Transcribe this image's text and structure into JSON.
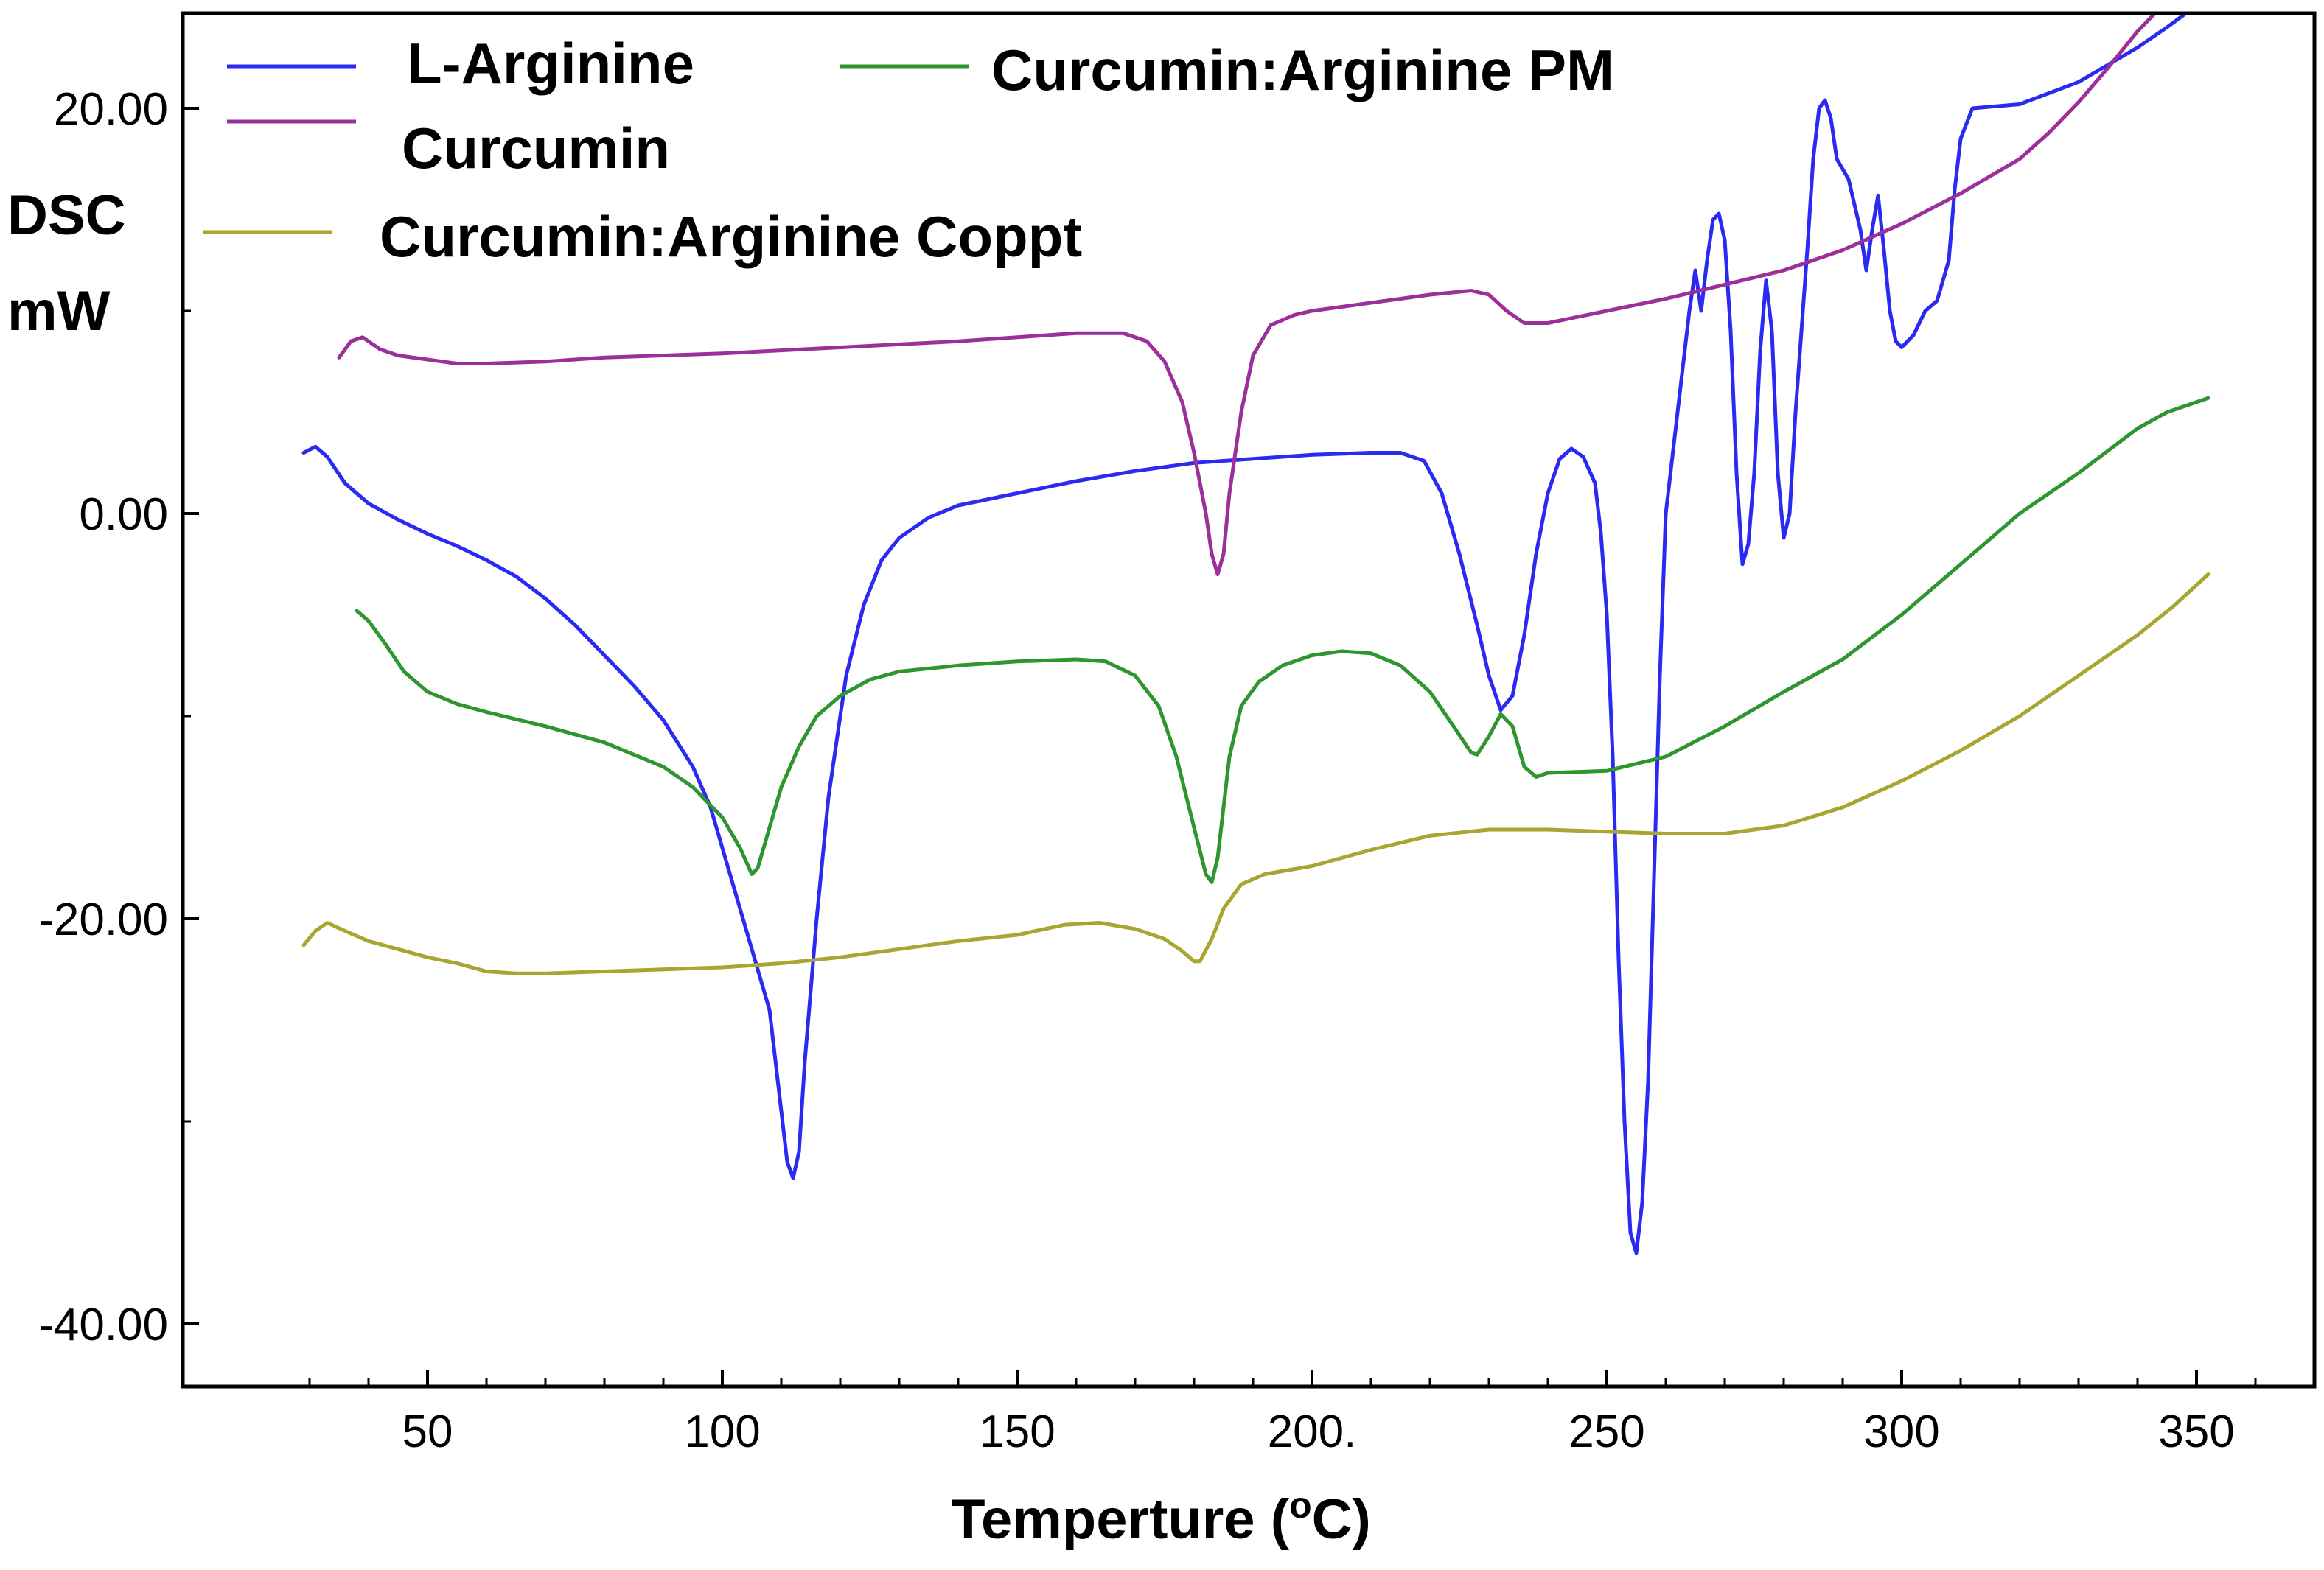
{
  "chart_data": {
    "type": "line",
    "title": "",
    "xlabel": "Temperture (",
    "xlabel_superscript": "o",
    "xlabel_suffix": "C)",
    "ylabel_line1": "DSC",
    "ylabel_line2": "mW",
    "xlim": [
      8,
      368
    ],
    "ylim": [
      -43,
      25
    ],
    "x_ticks": [
      {
        "value": 50,
        "label": "50"
      },
      {
        "value": 100,
        "label": "100"
      },
      {
        "value": 150,
        "label": "150"
      },
      {
        "value": 200,
        "label": "200."
      },
      {
        "value": 250,
        "label": "250"
      },
      {
        "value": 300,
        "label": "300"
      },
      {
        "value": 350,
        "label": "350"
      }
    ],
    "y_ticks": [
      {
        "value": 20,
        "label": "20.00"
      },
      {
        "value": 0,
        "label": "0.00"
      },
      {
        "value": -20,
        "label": "-20.00"
      },
      {
        "value": -40,
        "label": "-40.00"
      }
    ],
    "grid": false,
    "legend_position": "top-left",
    "series": [
      {
        "name": "L-Arginine",
        "color": "#2a2af2",
        "points": [
          [
            29,
            3.0
          ],
          [
            31,
            3.3
          ],
          [
            33,
            2.8
          ],
          [
            36,
            1.5
          ],
          [
            40,
            0.5
          ],
          [
            45,
            -0.3
          ],
          [
            50,
            -1.0
          ],
          [
            55,
            -1.6
          ],
          [
            60,
            -2.3
          ],
          [
            65,
            -3.1
          ],
          [
            70,
            -4.2
          ],
          [
            75,
            -5.5
          ],
          [
            80,
            -7.0
          ],
          [
            85,
            -8.5
          ],
          [
            90,
            -10.2
          ],
          [
            95,
            -12.5
          ],
          [
            98,
            -14.5
          ],
          [
            100,
            -16.5
          ],
          [
            103,
            -19.5
          ],
          [
            106,
            -22.5
          ],
          [
            108,
            -24.5
          ],
          [
            110,
            -29.5
          ],
          [
            111,
            -32.0
          ],
          [
            112,
            -32.8
          ],
          [
            113,
            -31.5
          ],
          [
            114,
            -27.0
          ],
          [
            116,
            -20.0
          ],
          [
            118,
            -14.0
          ],
          [
            121,
            -8.0
          ],
          [
            124,
            -4.5
          ],
          [
            127,
            -2.3
          ],
          [
            130,
            -1.2
          ],
          [
            135,
            -0.2
          ],
          [
            140,
            0.4
          ],
          [
            150,
            1.0
          ],
          [
            160,
            1.6
          ],
          [
            170,
            2.1
          ],
          [
            180,
            2.5
          ],
          [
            190,
            2.7
          ],
          [
            200,
            2.9
          ],
          [
            210,
            3.0
          ],
          [
            215,
            3.0
          ],
          [
            219,
            2.6
          ],
          [
            222,
            1.0
          ],
          [
            225,
            -2.0
          ],
          [
            228,
            -5.5
          ],
          [
            230,
            -8.0
          ],
          [
            232,
            -9.7
          ],
          [
            234,
            -9.0
          ],
          [
            236,
            -6.0
          ],
          [
            238,
            -2.0
          ],
          [
            240,
            1.0
          ],
          [
            242,
            2.7
          ],
          [
            244,
            3.2
          ],
          [
            246,
            2.8
          ],
          [
            248,
            1.5
          ],
          [
            249,
            -1.0
          ],
          [
            250,
            -5.0
          ],
          [
            251,
            -12.0
          ],
          [
            252,
            -22.0
          ],
          [
            253,
            -30.0
          ],
          [
            254,
            -35.5
          ],
          [
            255,
            -36.5
          ],
          [
            256,
            -34.0
          ],
          [
            257,
            -28.0
          ],
          [
            258,
            -18.0
          ],
          [
            259,
            -8.0
          ],
          [
            260,
            0.0
          ],
          [
            262,
            5.0
          ],
          [
            264,
            10.0
          ],
          [
            265,
            12.0
          ],
          [
            266,
            10.0
          ],
          [
            267,
            12.5
          ],
          [
            268,
            14.5
          ],
          [
            269,
            14.8
          ],
          [
            270,
            13.5
          ],
          [
            271,
            9.0
          ],
          [
            272,
            2.0
          ],
          [
            273,
            -2.5
          ],
          [
            274,
            -1.5
          ],
          [
            275,
            2.0
          ],
          [
            276,
            8.0
          ],
          [
            277,
            11.5
          ],
          [
            278,
            9.0
          ],
          [
            279,
            2.0
          ],
          [
            280,
            -1.2
          ],
          [
            281,
            0.0
          ],
          [
            282,
            5.0
          ],
          [
            284,
            13.0
          ],
          [
            285,
            17.5
          ],
          [
            286,
            20.0
          ],
          [
            287,
            20.4
          ],
          [
            288,
            19.5
          ],
          [
            289,
            17.5
          ],
          [
            291,
            16.5
          ],
          [
            293,
            14.0
          ],
          [
            294,
            12.0
          ],
          [
            295,
            14.0
          ],
          [
            296,
            15.7
          ],
          [
            297,
            13.0
          ],
          [
            298,
            10.0
          ],
          [
            299,
            8.5
          ],
          [
            300,
            8.2
          ],
          [
            302,
            8.8
          ],
          [
            304,
            10.0
          ],
          [
            306,
            10.5
          ],
          [
            308,
            12.5
          ],
          [
            309,
            16.0
          ],
          [
            310,
            18.5
          ],
          [
            312,
            20.0
          ],
          [
            320,
            20.2
          ],
          [
            330,
            21.3
          ],
          [
            340,
            23.0
          ],
          [
            345,
            24.0
          ],
          [
            352,
            25.5
          ]
        ]
      },
      {
        "name": "Curcumin",
        "color": "#9b309b",
        "points": [
          [
            35,
            7.7
          ],
          [
            37,
            8.5
          ],
          [
            39,
            8.7
          ],
          [
            42,
            8.1
          ],
          [
            45,
            7.8
          ],
          [
            50,
            7.6
          ],
          [
            55,
            7.4
          ],
          [
            60,
            7.4
          ],
          [
            70,
            7.5
          ],
          [
            80,
            7.7
          ],
          [
            90,
            7.8
          ],
          [
            100,
            7.9
          ],
          [
            120,
            8.2
          ],
          [
            140,
            8.5
          ],
          [
            150,
            8.7
          ],
          [
            160,
            8.9
          ],
          [
            168,
            8.9
          ],
          [
            172,
            8.5
          ],
          [
            175,
            7.5
          ],
          [
            178,
            5.5
          ],
          [
            180,
            3.0
          ],
          [
            182,
            0.0
          ],
          [
            183,
            -2.0
          ],
          [
            184,
            -3.0
          ],
          [
            185,
            -2.0
          ],
          [
            186,
            1.0
          ],
          [
            188,
            5.0
          ],
          [
            190,
            7.8
          ],
          [
            193,
            9.3
          ],
          [
            197,
            9.8
          ],
          [
            200,
            10.0
          ],
          [
            210,
            10.4
          ],
          [
            220,
            10.8
          ],
          [
            227,
            11.0
          ],
          [
            230,
            10.8
          ],
          [
            233,
            10.0
          ],
          [
            236,
            9.4
          ],
          [
            240,
            9.4
          ],
          [
            250,
            10.0
          ],
          [
            260,
            10.6
          ],
          [
            270,
            11.3
          ],
          [
            280,
            12.0
          ],
          [
            290,
            13.0
          ],
          [
            300,
            14.3
          ],
          [
            310,
            15.8
          ],
          [
            320,
            17.5
          ],
          [
            325,
            18.8
          ],
          [
            330,
            20.3
          ],
          [
            335,
            22.0
          ],
          [
            340,
            23.8
          ],
          [
            344,
            25.0
          ]
        ]
      },
      {
        "name": "Curcumin:Arginine PM",
        "color": "#2f952f",
        "points": [
          [
            38,
            -4.8
          ],
          [
            40,
            -5.3
          ],
          [
            43,
            -6.5
          ],
          [
            46,
            -7.8
          ],
          [
            50,
            -8.8
          ],
          [
            55,
            -9.4
          ],
          [
            60,
            -9.8
          ],
          [
            70,
            -10.5
          ],
          [
            80,
            -11.3
          ],
          [
            90,
            -12.5
          ],
          [
            95,
            -13.5
          ],
          [
            100,
            -15.0
          ],
          [
            103,
            -16.5
          ],
          [
            105,
            -17.8
          ],
          [
            106,
            -17.5
          ],
          [
            108,
            -15.5
          ],
          [
            110,
            -13.5
          ],
          [
            113,
            -11.5
          ],
          [
            116,
            -10.0
          ],
          [
            120,
            -9.0
          ],
          [
            125,
            -8.2
          ],
          [
            130,
            -7.8
          ],
          [
            140,
            -7.5
          ],
          [
            150,
            -7.3
          ],
          [
            160,
            -7.2
          ],
          [
            165,
            -7.3
          ],
          [
            170,
            -8.0
          ],
          [
            174,
            -9.5
          ],
          [
            177,
            -12.0
          ],
          [
            180,
            -15.5
          ],
          [
            182,
            -17.8
          ],
          [
            183,
            -18.2
          ],
          [
            184,
            -17.0
          ],
          [
            186,
            -12.0
          ],
          [
            188,
            -9.5
          ],
          [
            191,
            -8.3
          ],
          [
            195,
            -7.5
          ],
          [
            200,
            -7.0
          ],
          [
            205,
            -6.8
          ],
          [
            210,
            -6.9
          ],
          [
            215,
            -7.5
          ],
          [
            220,
            -8.8
          ],
          [
            224,
            -10.5
          ],
          [
            227,
            -11.8
          ],
          [
            228,
            -11.9
          ],
          [
            230,
            -11.0
          ],
          [
            232,
            -9.9
          ],
          [
            234,
            -10.5
          ],
          [
            236,
            -12.5
          ],
          [
            238,
            -13.0
          ],
          [
            240,
            -12.8
          ],
          [
            250,
            -12.7
          ],
          [
            260,
            -12.0
          ],
          [
            270,
            -10.5
          ],
          [
            280,
            -8.8
          ],
          [
            290,
            -7.2
          ],
          [
            300,
            -5.0
          ],
          [
            310,
            -2.5
          ],
          [
            320,
            0.0
          ],
          [
            330,
            2.0
          ],
          [
            340,
            4.2
          ],
          [
            345,
            5.0
          ],
          [
            352,
            5.7
          ]
        ]
      },
      {
        "name": "Curcumin:Arginine Coppt",
        "color": "#a9a531",
        "points": [
          [
            29,
            -21.3
          ],
          [
            31,
            -20.6
          ],
          [
            33,
            -20.2
          ],
          [
            36,
            -20.6
          ],
          [
            40,
            -21.1
          ],
          [
            45,
            -21.5
          ],
          [
            50,
            -21.9
          ],
          [
            55,
            -22.2
          ],
          [
            60,
            -22.6
          ],
          [
            65,
            -22.7
          ],
          [
            70,
            -22.7
          ],
          [
            80,
            -22.6
          ],
          [
            90,
            -22.5
          ],
          [
            100,
            -22.4
          ],
          [
            110,
            -22.2
          ],
          [
            120,
            -21.9
          ],
          [
            130,
            -21.5
          ],
          [
            140,
            -21.1
          ],
          [
            150,
            -20.8
          ],
          [
            158,
            -20.3
          ],
          [
            164,
            -20.2
          ],
          [
            170,
            -20.5
          ],
          [
            175,
            -21.0
          ],
          [
            178,
            -21.6
          ],
          [
            180,
            -22.1
          ],
          [
            181,
            -22.1
          ],
          [
            183,
            -21.0
          ],
          [
            185,
            -19.5
          ],
          [
            188,
            -18.3
          ],
          [
            192,
            -17.8
          ],
          [
            200,
            -17.4
          ],
          [
            210,
            -16.6
          ],
          [
            220,
            -15.9
          ],
          [
            230,
            -15.6
          ],
          [
            240,
            -15.6
          ],
          [
            250,
            -15.7
          ],
          [
            260,
            -15.8
          ],
          [
            270,
            -15.8
          ],
          [
            280,
            -15.4
          ],
          [
            290,
            -14.5
          ],
          [
            300,
            -13.2
          ],
          [
            310,
            -11.7
          ],
          [
            320,
            -10.0
          ],
          [
            330,
            -8.0
          ],
          [
            340,
            -6.0
          ],
          [
            346,
            -4.6
          ],
          [
            352,
            -3.0
          ]
        ]
      }
    ],
    "legend": [
      {
        "label": "L-Arginine",
        "color": "#2a2af2"
      },
      {
        "label": "Curcumin:Arginine PM",
        "color": "#2f952f"
      },
      {
        "label": "Curcumin",
        "color": "#9b309b"
      },
      {
        "label": "Curcumin:Arginine Coppt",
        "color": "#a9a531"
      }
    ]
  }
}
